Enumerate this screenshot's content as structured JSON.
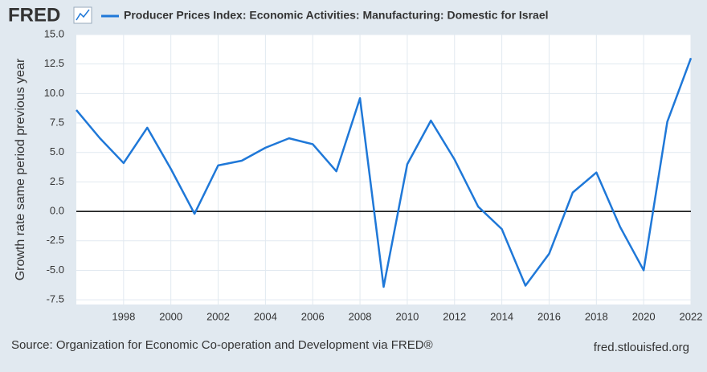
{
  "logo": "FRED",
  "chart_data": {
    "type": "line",
    "y_label": "Growth rate same period previous year",
    "source": "Source: Organization for Economic Co-operation and Development via FRED®",
    "site": "fred.stlouisfed.org",
    "x": [
      1996,
      1997,
      1998,
      1999,
      2000,
      2001,
      2002,
      2003,
      2004,
      2005,
      2006,
      2007,
      2008,
      2009,
      2010,
      2011,
      2012,
      2013,
      2014,
      2015,
      2016,
      2017,
      2018,
      2019,
      2020,
      2021,
      2022
    ],
    "series": [
      {
        "name": "Producer Prices Index: Economic Activities: Manufacturing: Domestic for Israel",
        "color": "#1f78d8",
        "values": [
          8.6,
          6.2,
          4.1,
          7.1,
          3.6,
          -0.2,
          3.9,
          4.3,
          5.4,
          6.2,
          5.7,
          3.4,
          9.6,
          -6.4,
          4.0,
          7.7,
          4.4,
          0.4,
          -1.5,
          -6.3,
          -3.6,
          1.6,
          3.3,
          -1.3,
          -5.0,
          7.6,
          13.0
        ]
      }
    ],
    "xlim": [
      1996,
      2022
    ],
    "xticks": [
      1998,
      2000,
      2002,
      2004,
      2006,
      2008,
      2010,
      2012,
      2014,
      2016,
      2018,
      2020,
      2022
    ],
    "ylim": [
      -7.9,
      15
    ],
    "yticks": [
      {
        "value": -7.5,
        "label": "-7.5"
      },
      {
        "value": -5,
        "label": "-5.0"
      },
      {
        "value": -2.5,
        "label": "-2.5"
      },
      {
        "value": 0,
        "label": "0.0"
      },
      {
        "value": 2.5,
        "label": "2.5"
      },
      {
        "value": 5,
        "label": "5.0"
      },
      {
        "value": 7.5,
        "label": "7.5"
      },
      {
        "value": 10,
        "label": "10.0"
      },
      {
        "value": 12.5,
        "label": "12.5"
      },
      {
        "value": 15,
        "label": "15.0"
      }
    ],
    "grid": true
  }
}
